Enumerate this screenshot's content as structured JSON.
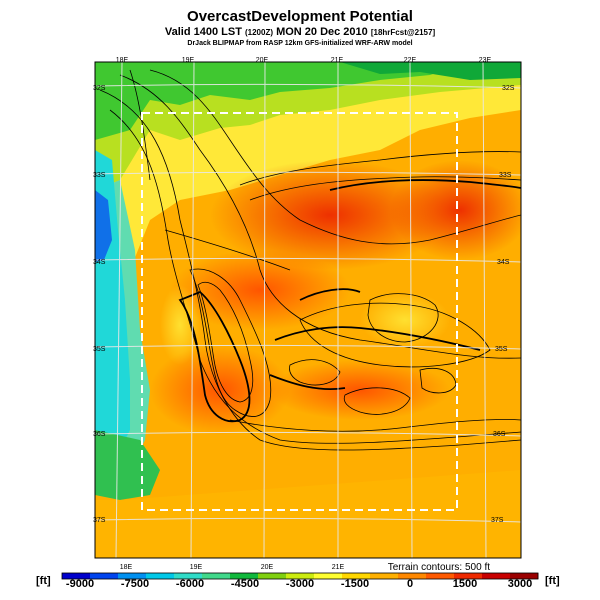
{
  "title": "OvercastDevelopment Potential",
  "valid": {
    "main": "Valid 1400 LST",
    "utc": "(1200Z)",
    "date": "MON 20 Dec 2010",
    "forecast": "[18hrFcst@2157]"
  },
  "model_line": "DrJack BLIPMAP from RASP 12km GFS-initialized WRF-ARW model",
  "longitude_labels": [
    "18E",
    "19E",
    "20E",
    "21E",
    "22E",
    "23E"
  ],
  "latitude_labels": [
    "32S",
    "33S",
    "34S",
    "35S",
    "36S",
    "37S"
  ],
  "terrain_note": "Terrain contours: 500 ft",
  "colorbar": {
    "unit_left": "[ft]",
    "unit_right": "[ft]",
    "tick_labels": [
      "-9000",
      "-7500",
      "-6000",
      "-4500",
      "-3000",
      "-1500",
      "0",
      "1500",
      "3000"
    ],
    "colors": [
      "#0000cc",
      "#0044ee",
      "#0090f0",
      "#00c8e8",
      "#30dcc8",
      "#40d88a",
      "#10b83c",
      "#80d010",
      "#ccec10",
      "#ffff30",
      "#ffd700",
      "#ffb000",
      "#ff8800",
      "#ff5a00",
      "#ee2a00",
      "#c80000",
      "#9a0000"
    ]
  }
}
